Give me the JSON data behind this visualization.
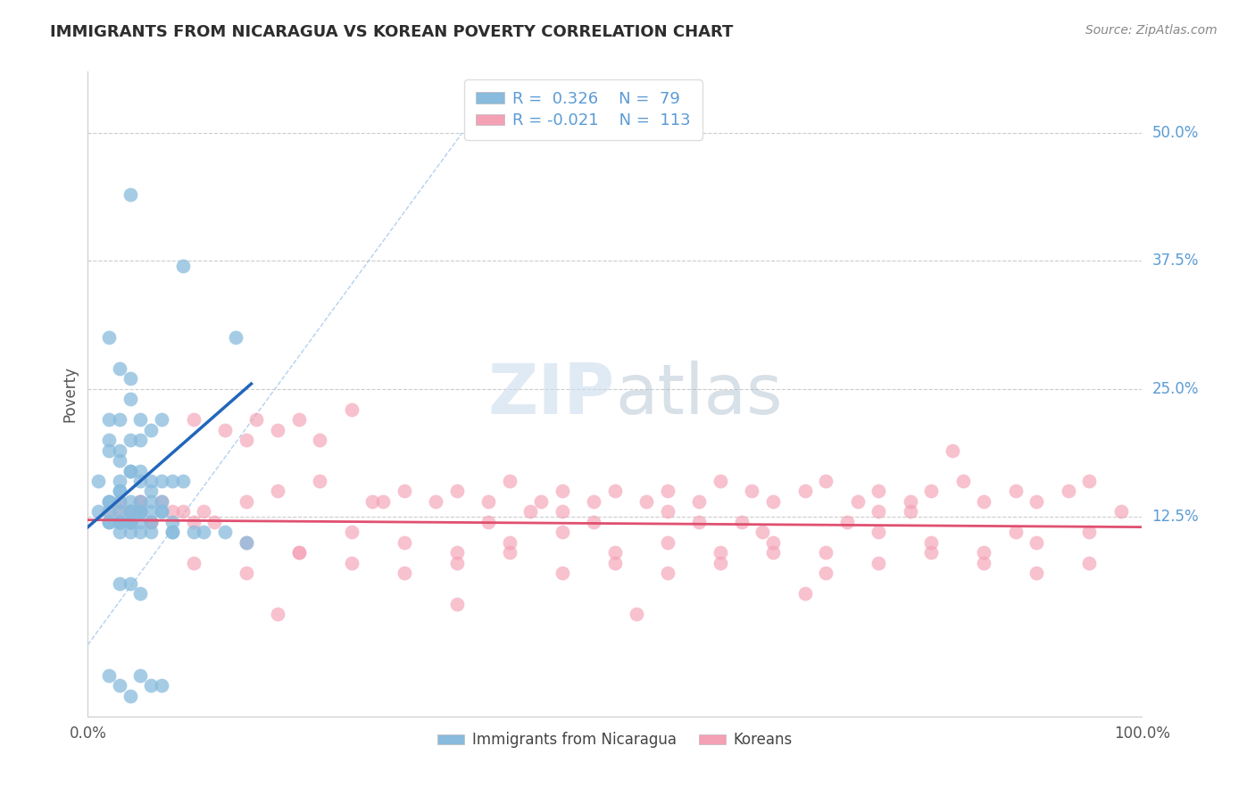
{
  "title": "IMMIGRANTS FROM NICARAGUA VS KOREAN POVERTY CORRELATION CHART",
  "source": "Source: ZipAtlas.com",
  "ylabel": "Poverty",
  "legend_blue_label": "Immigrants from Nicaragua",
  "legend_pink_label": "Koreans",
  "r_blue": "0.326",
  "n_blue": "79",
  "r_pink": "-0.021",
  "n_pink": "113",
  "xlim": [
    0.0,
    1.0
  ],
  "ylim": [
    -0.07,
    0.56
  ],
  "y_tick_positions": [
    0.0,
    0.125,
    0.25,
    0.375,
    0.5
  ],
  "y_tick_labels": [
    "",
    "12.5%",
    "25.0%",
    "37.5%",
    "50.0%"
  ],
  "title_color": "#2d2d2d",
  "title_fontsize": 13,
  "source_fontsize": 10,
  "blue_dot_color": "#88bbdd",
  "blue_line_color": "#2266bb",
  "pink_dot_color": "#f4a0b5",
  "pink_line_color": "#e05070",
  "diag_line_color": "#aaccee",
  "grid_color": "#cccccc",
  "tick_label_color": "#5b9bd5",
  "ylabel_color": "#555555",
  "watermark_color": "#dddddd",
  "blue_x": [
    0.04,
    0.09,
    0.02,
    0.14,
    0.03,
    0.04,
    0.04,
    0.05,
    0.07,
    0.05,
    0.02,
    0.03,
    0.02,
    0.03,
    0.04,
    0.06,
    0.02,
    0.03,
    0.01,
    0.04,
    0.03,
    0.05,
    0.06,
    0.04,
    0.03,
    0.05,
    0.07,
    0.08,
    0.06,
    0.09,
    0.02,
    0.03,
    0.02,
    0.04,
    0.03,
    0.05,
    0.04,
    0.06,
    0.05,
    0.07,
    0.01,
    0.02,
    0.02,
    0.03,
    0.04,
    0.03,
    0.05,
    0.06,
    0.07,
    0.08,
    0.02,
    0.03,
    0.04,
    0.05,
    0.03,
    0.04,
    0.05,
    0.06,
    0.07,
    0.04,
    0.03,
    0.04,
    0.05,
    0.06,
    0.08,
    0.1,
    0.11,
    0.13,
    0.15,
    0.08,
    0.02,
    0.03,
    0.04,
    0.05,
    0.06,
    0.07,
    0.03,
    0.04,
    0.05
  ],
  "blue_y": [
    0.44,
    0.37,
    0.3,
    0.3,
    0.27,
    0.26,
    0.24,
    0.22,
    0.22,
    0.2,
    0.2,
    0.19,
    0.22,
    0.22,
    0.2,
    0.21,
    0.19,
    0.18,
    0.16,
    0.17,
    0.16,
    0.17,
    0.16,
    0.17,
    0.15,
    0.16,
    0.16,
    0.16,
    0.15,
    0.16,
    0.14,
    0.15,
    0.14,
    0.14,
    0.14,
    0.14,
    0.13,
    0.14,
    0.13,
    0.14,
    0.13,
    0.13,
    0.12,
    0.13,
    0.13,
    0.12,
    0.13,
    0.13,
    0.13,
    0.12,
    0.12,
    0.12,
    0.12,
    0.13,
    0.12,
    0.12,
    0.12,
    0.12,
    0.13,
    0.12,
    0.11,
    0.11,
    0.11,
    0.11,
    0.11,
    0.11,
    0.11,
    0.11,
    0.1,
    0.11,
    -0.03,
    -0.04,
    -0.05,
    -0.03,
    -0.04,
    -0.04,
    0.06,
    0.06,
    0.05
  ],
  "pink_x": [
    0.02,
    0.03,
    0.04,
    0.05,
    0.03,
    0.04,
    0.05,
    0.06,
    0.04,
    0.05,
    0.03,
    0.04,
    0.05,
    0.06,
    0.07,
    0.08,
    0.09,
    0.1,
    0.11,
    0.12,
    0.1,
    0.13,
    0.15,
    0.16,
    0.18,
    0.2,
    0.22,
    0.25,
    0.15,
    0.18,
    0.22,
    0.27,
    0.3,
    0.33,
    0.35,
    0.38,
    0.4,
    0.43,
    0.45,
    0.48,
    0.5,
    0.53,
    0.55,
    0.58,
    0.6,
    0.63,
    0.65,
    0.68,
    0.7,
    0.73,
    0.75,
    0.78,
    0.8,
    0.83,
    0.85,
    0.88,
    0.9,
    0.93,
    0.95,
    0.98,
    0.15,
    0.2,
    0.25,
    0.3,
    0.35,
    0.4,
    0.45,
    0.5,
    0.55,
    0.6,
    0.65,
    0.7,
    0.75,
    0.8,
    0.85,
    0.9,
    0.95,
    0.1,
    0.15,
    0.2,
    0.25,
    0.3,
    0.35,
    0.4,
    0.45,
    0.5,
    0.55,
    0.6,
    0.65,
    0.7,
    0.75,
    0.8,
    0.85,
    0.9,
    0.95,
    0.18,
    0.35,
    0.52,
    0.68,
    0.82,
    0.38,
    0.55,
    0.72,
    0.88,
    0.42,
    0.58,
    0.75,
    0.28,
    0.45,
    0.62,
    0.78,
    0.48,
    0.64
  ],
  "pink_y": [
    0.13,
    0.14,
    0.12,
    0.13,
    0.12,
    0.13,
    0.14,
    0.12,
    0.13,
    0.14,
    0.13,
    0.12,
    0.13,
    0.12,
    0.14,
    0.13,
    0.13,
    0.12,
    0.13,
    0.12,
    0.22,
    0.21,
    0.2,
    0.22,
    0.21,
    0.22,
    0.2,
    0.23,
    0.14,
    0.15,
    0.16,
    0.14,
    0.15,
    0.14,
    0.15,
    0.14,
    0.16,
    0.14,
    0.15,
    0.14,
    0.15,
    0.14,
    0.15,
    0.14,
    0.16,
    0.15,
    0.14,
    0.15,
    0.16,
    0.14,
    0.15,
    0.14,
    0.15,
    0.16,
    0.14,
    0.15,
    0.14,
    0.15,
    0.16,
    0.13,
    0.1,
    0.09,
    0.11,
    0.1,
    0.09,
    0.1,
    0.11,
    0.09,
    0.1,
    0.09,
    0.1,
    0.09,
    0.11,
    0.1,
    0.09,
    0.1,
    0.11,
    0.08,
    0.07,
    0.09,
    0.08,
    0.07,
    0.08,
    0.09,
    0.07,
    0.08,
    0.07,
    0.08,
    0.09,
    0.07,
    0.08,
    0.09,
    0.08,
    0.07,
    0.08,
    0.03,
    0.04,
    0.03,
    0.05,
    0.19,
    0.12,
    0.13,
    0.12,
    0.11,
    0.13,
    0.12,
    0.13,
    0.14,
    0.13,
    0.12,
    0.13,
    0.12,
    0.11
  ],
  "blue_line_x": [
    0.0,
    0.155
  ],
  "blue_line_y": [
    0.115,
    0.255
  ],
  "pink_line_x": [
    0.0,
    1.0
  ],
  "pink_line_y": [
    0.122,
    0.115
  ],
  "diag_line_x": [
    0.0,
    0.355
  ],
  "diag_line_y": [
    0.0,
    0.5
  ]
}
